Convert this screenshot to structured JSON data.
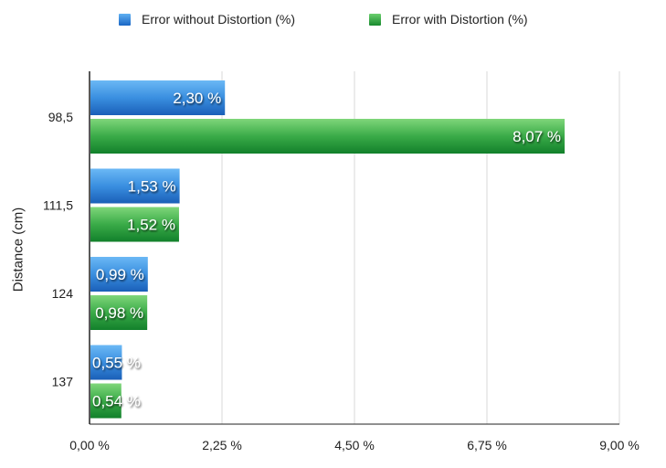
{
  "chart_data": {
    "type": "bar",
    "orientation": "horizontal",
    "categories": [
      "98,5",
      "111,5",
      "124",
      "137"
    ],
    "series": [
      {
        "name": "Error without Distortion (%)",
        "values": [
          2.3,
          1.53,
          0.99,
          0.55
        ],
        "labels": [
          "2,30 %",
          "1,53 %",
          "0,99 %",
          "0,55 %"
        ],
        "color": "#2a7fd6"
      },
      {
        "name": "Error with Distortion (%)",
        "values": [
          8.07,
          1.52,
          0.98,
          0.54
        ],
        "labels": [
          "8,07 %",
          "1,52 %",
          "0,98 %",
          "0,54 %"
        ],
        "color": "#2ea043"
      }
    ],
    "xlim": [
      0,
      9
    ],
    "xticks": [
      0,
      2.25,
      4.5,
      6.75,
      9
    ],
    "xtick_labels": [
      "0,00 %",
      "2,25 %",
      "4,50 %",
      "6,75 %",
      "9,00 %"
    ],
    "ylabel": "Distance (cm)",
    "grid": "vertical",
    "legend": "top"
  }
}
